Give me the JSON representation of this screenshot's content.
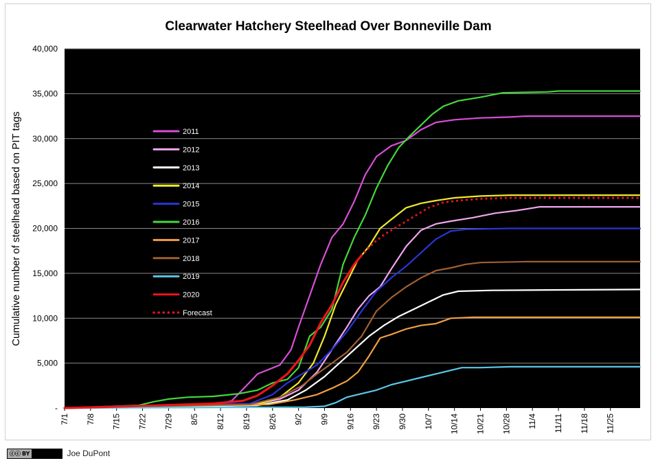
{
  "chart_data": {
    "type": "line",
    "title": "Clearwater Hatchery Steelhead Over Bonneville Dam",
    "ylabel": "Cumulative number of steelhead based on PIT tags",
    "xlabel": "",
    "ylim": [
      0,
      40000
    ],
    "yticks": [
      "-",
      "5,000",
      "10,000",
      "15,000",
      "20,000",
      "25,000",
      "30,000",
      "35,000",
      "40,000"
    ],
    "xlim": [
      0,
      155
    ],
    "xticks": [
      {
        "day": 0,
        "label": "7/1"
      },
      {
        "day": 7,
        "label": "7/8"
      },
      {
        "day": 14,
        "label": "7/15"
      },
      {
        "day": 21,
        "label": "7/22"
      },
      {
        "day": 28,
        "label": "7/29"
      },
      {
        "day": 35,
        "label": "8/5"
      },
      {
        "day": 42,
        "label": "8/12"
      },
      {
        "day": 49,
        "label": "8/19"
      },
      {
        "day": 56,
        "label": "8/26"
      },
      {
        "day": 63,
        "label": "9/2"
      },
      {
        "day": 70,
        "label": "9/9"
      },
      {
        "day": 77,
        "label": "9/16"
      },
      {
        "day": 84,
        "label": "9/23"
      },
      {
        "day": 91,
        "label": "9/30"
      },
      {
        "day": 98,
        "label": "10/7"
      },
      {
        "day": 105,
        "label": "10/14"
      },
      {
        "day": 112,
        "label": "10/21"
      },
      {
        "day": 119,
        "label": "10/28"
      },
      {
        "day": 126,
        "label": "11/4"
      },
      {
        "day": 133,
        "label": "11/11"
      },
      {
        "day": 140,
        "label": "11/18"
      },
      {
        "day": 147,
        "label": "11/25"
      }
    ],
    "grid": "horizontal",
    "legend_placement": "upper-left",
    "series": [
      {
        "name": "2011",
        "color": "#d84fd8",
        "dotted": false,
        "points": [
          [
            0,
            0
          ],
          [
            40,
            300
          ],
          [
            45,
            800
          ],
          [
            49,
            2500
          ],
          [
            52,
            3800
          ],
          [
            55,
            4300
          ],
          [
            58,
            4800
          ],
          [
            61,
            6500
          ],
          [
            63,
            9000
          ],
          [
            66,
            12500
          ],
          [
            69,
            16000
          ],
          [
            72,
            19000
          ],
          [
            75,
            20500
          ],
          [
            78,
            23000
          ],
          [
            81,
            26000
          ],
          [
            84,
            28000
          ],
          [
            88,
            29200
          ],
          [
            92,
            29800
          ],
          [
            96,
            31000
          ],
          [
            100,
            31800
          ],
          [
            105,
            32100
          ],
          [
            112,
            32300
          ],
          [
            120,
            32400
          ],
          [
            124,
            32500
          ],
          [
            155,
            32500
          ]
        ]
      },
      {
        "name": "2012",
        "color": "#f2a6ef",
        "dotted": false,
        "points": [
          [
            0,
            0
          ],
          [
            50,
            300
          ],
          [
            58,
            1000
          ],
          [
            63,
            2000
          ],
          [
            68,
            4000
          ],
          [
            72,
            6500
          ],
          [
            76,
            9000
          ],
          [
            79,
            11000
          ],
          [
            82,
            12500
          ],
          [
            85,
            13500
          ],
          [
            88,
            15500
          ],
          [
            92,
            18000
          ],
          [
            96,
            19800
          ],
          [
            100,
            20500
          ],
          [
            104,
            20800
          ],
          [
            110,
            21200
          ],
          [
            116,
            21700
          ],
          [
            122,
            22000
          ],
          [
            128,
            22400
          ],
          [
            155,
            22400
          ]
        ]
      },
      {
        "name": "2013",
        "color": "#ffffff",
        "dotted": false,
        "points": [
          [
            0,
            0
          ],
          [
            52,
            300
          ],
          [
            60,
            900
          ],
          [
            65,
            2000
          ],
          [
            70,
            3500
          ],
          [
            74,
            5000
          ],
          [
            78,
            6500
          ],
          [
            82,
            8000
          ],
          [
            86,
            9200
          ],
          [
            90,
            10200
          ],
          [
            94,
            11000
          ],
          [
            98,
            11800
          ],
          [
            102,
            12600
          ],
          [
            106,
            13000
          ],
          [
            115,
            13100
          ],
          [
            130,
            13150
          ],
          [
            155,
            13200
          ]
        ]
      },
      {
        "name": "2014",
        "color": "#f2ea2c",
        "dotted": false,
        "points": [
          [
            0,
            0
          ],
          [
            52,
            400
          ],
          [
            58,
            1200
          ],
          [
            63,
            2800
          ],
          [
            67,
            5000
          ],
          [
            70,
            8000
          ],
          [
            73,
            11500
          ],
          [
            76,
            14000
          ],
          [
            79,
            16500
          ],
          [
            82,
            18000
          ],
          [
            85,
            20000
          ],
          [
            88,
            21000
          ],
          [
            92,
            22300
          ],
          [
            96,
            22800
          ],
          [
            100,
            23100
          ],
          [
            105,
            23400
          ],
          [
            112,
            23600
          ],
          [
            120,
            23700
          ],
          [
            155,
            23700
          ]
        ]
      },
      {
        "name": "2015",
        "color": "#2a35d8",
        "dotted": false,
        "points": [
          [
            0,
            0
          ],
          [
            50,
            500
          ],
          [
            56,
            1500
          ],
          [
            60,
            2800
          ],
          [
            64,
            3800
          ],
          [
            68,
            4800
          ],
          [
            72,
            6500
          ],
          [
            76,
            8500
          ],
          [
            80,
            10800
          ],
          [
            84,
            13000
          ],
          [
            88,
            14500
          ],
          [
            92,
            15800
          ],
          [
            96,
            17300
          ],
          [
            100,
            18800
          ],
          [
            104,
            19700
          ],
          [
            108,
            19900
          ],
          [
            120,
            20000
          ],
          [
            155,
            20000
          ]
        ]
      },
      {
        "name": "2016",
        "color": "#44d83c",
        "dotted": false,
        "points": [
          [
            0,
            0
          ],
          [
            20,
            300
          ],
          [
            24,
            700
          ],
          [
            28,
            1000
          ],
          [
            33,
            1200
          ],
          [
            40,
            1300
          ],
          [
            47,
            1600
          ],
          [
            52,
            2000
          ],
          [
            56,
            2800
          ],
          [
            60,
            3200
          ],
          [
            63,
            4500
          ],
          [
            66,
            8000
          ],
          [
            69,
            9000
          ],
          [
            72,
            11000
          ],
          [
            75,
            16000
          ],
          [
            78,
            19000
          ],
          [
            81,
            21500
          ],
          [
            84,
            24500
          ],
          [
            87,
            27000
          ],
          [
            90,
            29000
          ],
          [
            93,
            30300
          ],
          [
            96,
            31500
          ],
          [
            99,
            32700
          ],
          [
            102,
            33600
          ],
          [
            106,
            34200
          ],
          [
            112,
            34600
          ],
          [
            118,
            35100
          ],
          [
            130,
            35200
          ],
          [
            133,
            35300
          ],
          [
            155,
            35300
          ]
        ]
      },
      {
        "name": "2017",
        "color": "#f0a040",
        "dotted": false,
        "points": [
          [
            0,
            0
          ],
          [
            55,
            400
          ],
          [
            62,
            900
          ],
          [
            68,
            1500
          ],
          [
            72,
            2200
          ],
          [
            76,
            3000
          ],
          [
            79,
            4000
          ],
          [
            82,
            5800
          ],
          [
            85,
            7800
          ],
          [
            88,
            8200
          ],
          [
            92,
            8800
          ],
          [
            96,
            9200
          ],
          [
            100,
            9400
          ],
          [
            104,
            10000
          ],
          [
            110,
            10100
          ],
          [
            155,
            10100
          ]
        ]
      },
      {
        "name": "2018",
        "color": "#a06030",
        "dotted": false,
        "points": [
          [
            0,
            0
          ],
          [
            50,
            400
          ],
          [
            58,
            1200
          ],
          [
            64,
            2500
          ],
          [
            68,
            3800
          ],
          [
            72,
            5000
          ],
          [
            76,
            6200
          ],
          [
            80,
            8000
          ],
          [
            84,
            10800
          ],
          [
            88,
            12300
          ],
          [
            92,
            13500
          ],
          [
            96,
            14500
          ],
          [
            100,
            15300
          ],
          [
            104,
            15600
          ],
          [
            108,
            16000
          ],
          [
            112,
            16200
          ],
          [
            124,
            16300
          ],
          [
            155,
            16300
          ]
        ]
      },
      {
        "name": "2019",
        "color": "#5bc8e8",
        "dotted": false,
        "points": [
          [
            0,
            0
          ],
          [
            65,
            100
          ],
          [
            70,
            200
          ],
          [
            73,
            600
          ],
          [
            76,
            1200
          ],
          [
            80,
            1600
          ],
          [
            84,
            2000
          ],
          [
            88,
            2600
          ],
          [
            92,
            3000
          ],
          [
            96,
            3400
          ],
          [
            100,
            3800
          ],
          [
            104,
            4200
          ],
          [
            107,
            4500
          ],
          [
            112,
            4500
          ],
          [
            120,
            4600
          ],
          [
            155,
            4600
          ]
        ]
      },
      {
        "name": "2020",
        "color": "#e8161b",
        "dotted": false,
        "points": [
          [
            0,
            0
          ],
          [
            18,
            200
          ],
          [
            40,
            500
          ],
          [
            48,
            800
          ],
          [
            52,
            1400
          ],
          [
            56,
            2500
          ],
          [
            60,
            3800
          ],
          [
            63,
            5300
          ],
          [
            66,
            7000
          ],
          [
            69,
            9500
          ],
          [
            72,
            11500
          ],
          [
            75,
            14000
          ],
          [
            78,
            16000
          ],
          [
            80,
            17000
          ]
        ]
      },
      {
        "name": "Forecast",
        "color": "#e0161b",
        "dotted": true,
        "points": [
          [
            80,
            17000
          ],
          [
            83,
            18300
          ],
          [
            86,
            19300
          ],
          [
            90,
            20300
          ],
          [
            94,
            21300
          ],
          [
            98,
            22300
          ],
          [
            102,
            22900
          ],
          [
            106,
            23100
          ],
          [
            112,
            23300
          ],
          [
            120,
            23400
          ],
          [
            155,
            23400
          ]
        ]
      }
    ]
  },
  "footer": {
    "license_badge": "BY",
    "credit": "Joe DuPont"
  }
}
